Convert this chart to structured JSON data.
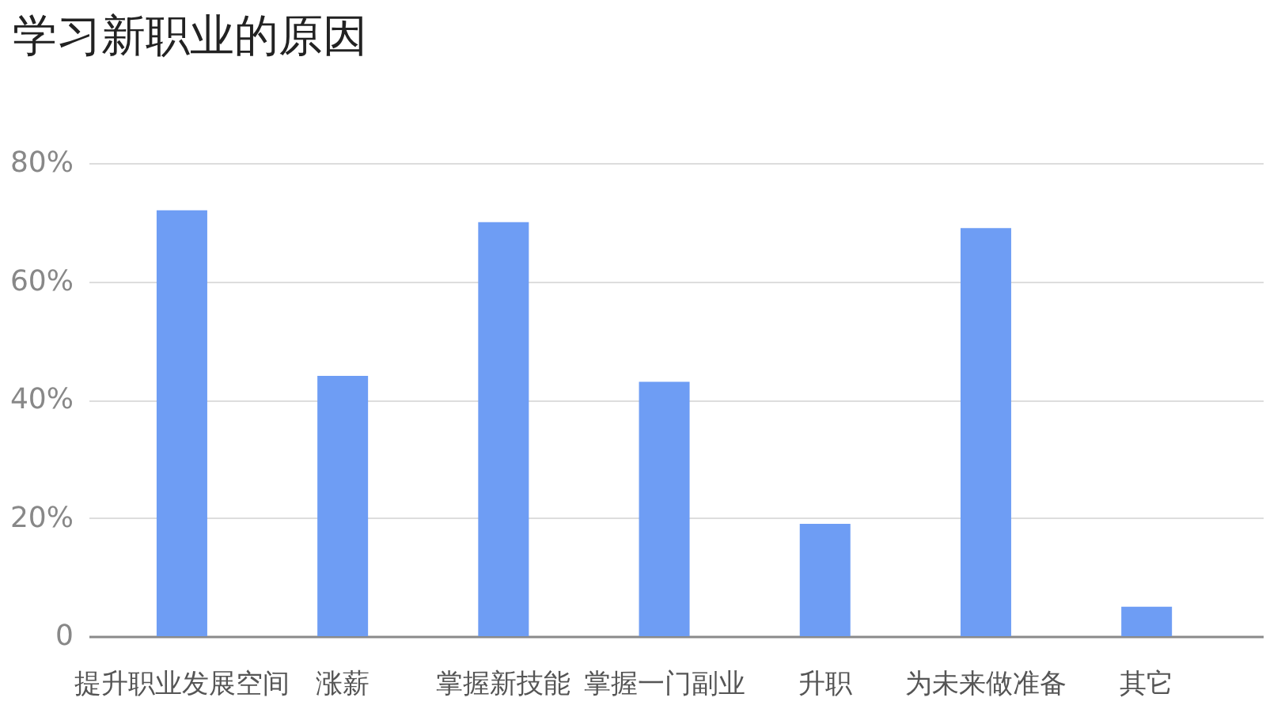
{
  "chart_data": {
    "type": "bar",
    "title": "学习新职业的原因",
    "categories": [
      "提升职业发展空间",
      "涨薪",
      "掌握新技能",
      "掌握一门副业",
      "升职",
      "为未来做准备",
      "其它"
    ],
    "values": [
      72,
      44,
      70,
      43,
      19,
      69,
      5
    ],
    "color": "#6e9df4",
    "ylim": [
      0,
      80
    ],
    "yticks": [
      0,
      {
        "value": 20,
        "label": "20%"
      },
      {
        "value": 40,
        "label": "40%"
      },
      {
        "value": 60,
        "label": "60%"
      },
      {
        "value": 80,
        "label": "80%"
      }
    ],
    "grid": "y"
  }
}
